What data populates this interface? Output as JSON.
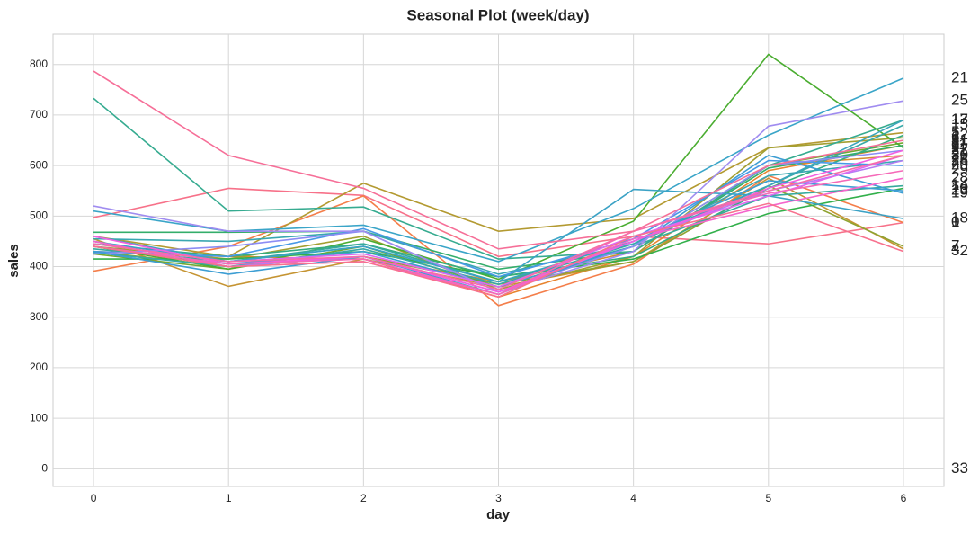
{
  "chart_data": {
    "type": "line",
    "title": "Seasonal Plot (week/day)",
    "x_label": "day",
    "y_label": "sales",
    "x": [
      0,
      1,
      2,
      3,
      4,
      5,
      6
    ],
    "xlim": [
      -0.3,
      6.3
    ],
    "xticks": [
      0,
      1,
      2,
      3,
      4,
      5,
      6
    ],
    "ylim": [
      -35,
      860
    ],
    "yticks": [
      0,
      100,
      200,
      300,
      400,
      500,
      600,
      700,
      800
    ],
    "grid": true,
    "series": [
      {
        "name": "0",
        "color": "#f77189",
        "values": [
          497,
          555,
          541,
          420,
          460,
          445,
          487
        ]
      },
      {
        "name": "1",
        "color": "#f47e4a",
        "values": [
          391,
          440,
          540,
          323,
          405,
          580,
          487
        ]
      },
      {
        "name": "2",
        "color": "#e8842f",
        "values": [
          430,
          420,
          415,
          340,
          420,
          590,
          640
        ]
      },
      {
        "name": "3",
        "color": "#d58c32",
        "values": [
          450,
          400,
          420,
          370,
          430,
          600,
          620
        ]
      },
      {
        "name": "4",
        "color": "#c59432",
        "values": [
          455,
          361,
          415,
          360,
          410,
          575,
          435
        ]
      },
      {
        "name": "5",
        "color": "#b39a31",
        "values": [
          460,
          420,
          565,
          470,
          495,
          635,
          665
        ]
      },
      {
        "name": "6",
        "color": "#a39f31",
        "values": [
          440,
          415,
          460,
          355,
          420,
          635,
          655
        ]
      },
      {
        "name": "7",
        "color": "#8fa331",
        "values": [
          430,
          400,
          420,
          365,
          410,
          560,
          440
        ]
      },
      {
        "name": "8",
        "color": "#73a831",
        "values": [
          425,
          395,
          440,
          360,
          440,
          600,
          645
        ]
      },
      {
        "name": "9",
        "color": "#4bad31",
        "values": [
          440,
          395,
          455,
          375,
          490,
          820,
          635
        ]
      },
      {
        "name": "10",
        "color": "#32b04b",
        "values": [
          415,
          415,
          430,
          380,
          415,
          505,
          555
        ]
      },
      {
        "name": "11",
        "color": "#34ae6b",
        "values": [
          468,
          468,
          470,
          395,
          430,
          595,
          640
        ]
      },
      {
        "name": "12",
        "color": "#35ac80",
        "values": [
          445,
          420,
          445,
          380,
          420,
          555,
          660
        ]
      },
      {
        "name": "13",
        "color": "#36ab90",
        "values": [
          733,
          510,
          518,
          415,
          430,
          600,
          690
        ]
      },
      {
        "name": "14",
        "color": "#37aa9c",
        "values": [
          435,
          410,
          445,
          370,
          440,
          540,
          560
        ]
      },
      {
        "name": "15",
        "color": "#38a9a7",
        "values": [
          428,
          400,
          435,
          365,
          445,
          560,
          680
        ]
      },
      {
        "name": "16",
        "color": "#39a7b1",
        "values": [
          455,
          450,
          470,
          385,
          445,
          580,
          610
        ]
      },
      {
        "name": "17",
        "color": "#3aa5bb",
        "values": [
          460,
          410,
          440,
          370,
          450,
          560,
          690
        ]
      },
      {
        "name": "18",
        "color": "#3ba2c5",
        "values": [
          450,
          410,
          440,
          370,
          553,
          540,
          495
        ]
      },
      {
        "name": "19",
        "color": "#3d9ed3",
        "values": [
          440,
          405,
          430,
          360,
          440,
          620,
          545
        ]
      },
      {
        "name": "20",
        "color": "#4799e6",
        "values": [
          430,
          420,
          475,
          380,
          455,
          610,
          600
        ]
      },
      {
        "name": "21",
        "color": "#3aa5c8",
        "values": [
          510,
          470,
          482,
          410,
          515,
          660,
          773
        ]
      },
      {
        "name": "22",
        "color": "#8c8cf4",
        "values": [
          425,
          440,
          470,
          350,
          440,
          600,
          630
        ]
      },
      {
        "name": "23",
        "color": "#3d9ed3",
        "values": [
          430,
          385,
          420,
          345,
          450,
          570,
          550
        ]
      },
      {
        "name": "24",
        "color": "#b47cf4",
        "values": [
          450,
          400,
          420,
          350,
          450,
          550,
          610
        ]
      },
      {
        "name": "25",
        "color": "#a08cf0",
        "values": [
          520,
          470,
          470,
          350,
          430,
          678,
          728
        ]
      },
      {
        "name": "26",
        "color": "#de6af0",
        "values": [
          445,
          410,
          425,
          360,
          460,
          540,
          620
        ]
      },
      {
        "name": "27",
        "color": "#f35fe0",
        "values": [
          460,
          405,
          420,
          350,
          450,
          555,
          630
        ]
      },
      {
        "name": "28",
        "color": "#f565cc",
        "values": [
          450,
          400,
          410,
          345,
          455,
          520,
          575
        ]
      },
      {
        "name": "29",
        "color": "#f569b8",
        "values": [
          440,
          405,
          415,
          345,
          470,
          545,
          590
        ]
      },
      {
        "name": "30",
        "color": "#f66da7",
        "values": [
          445,
          410,
          420,
          355,
          470,
          550,
          620
        ]
      },
      {
        "name": "31",
        "color": "#f66f98",
        "values": [
          787,
          620,
          555,
          435,
          470,
          600,
          650
        ]
      },
      {
        "name": "32",
        "color": "#f7718e",
        "values": [
          440,
          400,
          410,
          340,
          460,
          525,
          430
        ]
      },
      {
        "name": "33",
        "color": "#f77189",
        "values": [
          null,
          null,
          null,
          null,
          null,
          null,
          null
        ]
      }
    ]
  }
}
